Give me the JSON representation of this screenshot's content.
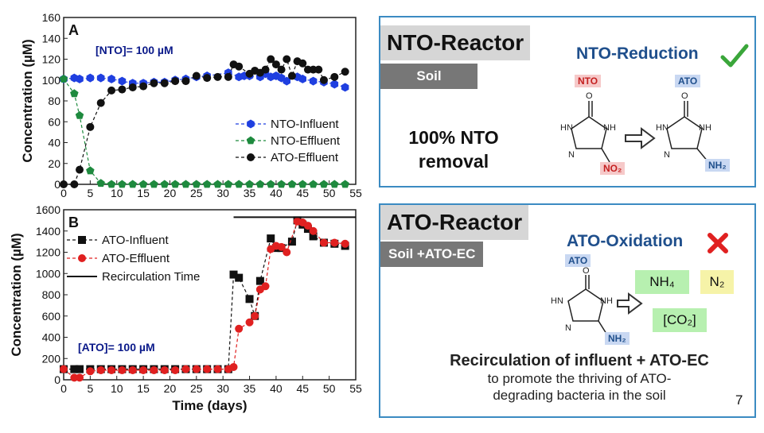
{
  "chart_data": [
    {
      "type": "line",
      "panel_letter": "A",
      "annotation": "[NTO]= 100 µM",
      "xlabel": "",
      "ylabel": "Concentration (µM)",
      "xlim": [
        0,
        55
      ],
      "ylim": [
        0,
        160
      ],
      "x_ticks": [
        "0",
        "5",
        "10",
        "15",
        "20",
        "25",
        "30",
        "35",
        "40",
        "45",
        "50",
        "55"
      ],
      "y_ticks": [
        "0",
        "20",
        "40",
        "60",
        "80",
        "100",
        "120",
        "140",
        "160"
      ],
      "legend_position": "right",
      "series": [
        {
          "name": "NTO-Influent",
          "color": "#1f3fe0",
          "marker": "hexagon",
          "x": [
            0,
            2,
            3,
            5,
            7,
            9,
            11,
            13,
            15,
            17,
            19,
            21,
            23,
            25,
            27,
            31,
            33,
            34,
            35,
            37,
            38,
            39,
            40,
            41,
            42,
            44,
            45,
            47,
            49,
            51,
            53
          ],
          "y": [
            101,
            102,
            101,
            102,
            102,
            101,
            99,
            97,
            97,
            98,
            98,
            100,
            101,
            103,
            104,
            107,
            103,
            104,
            104,
            103,
            106,
            103,
            104,
            102,
            99,
            103,
            101,
            99,
            98,
            96,
            93
          ]
        },
        {
          "name": "NTO-Effluent",
          "color": "#1e8a3e",
          "marker": "pentagon",
          "x": [
            0,
            2,
            3,
            5,
            7,
            9,
            11,
            13,
            15,
            17,
            19,
            21,
            23,
            25,
            27,
            29,
            31,
            33,
            35,
            37,
            39,
            41,
            43,
            45,
            47,
            49,
            51,
            53
          ],
          "y": [
            101,
            87,
            66,
            13,
            1,
            0,
            0,
            0,
            0,
            0,
            0,
            0,
            0,
            0,
            0,
            0,
            0,
            0,
            0,
            0,
            0,
            0,
            0,
            0,
            0,
            0,
            0,
            0
          ]
        },
        {
          "name": "ATO-Effluent",
          "color": "#111111",
          "marker": "circle",
          "x": [
            0,
            2,
            3,
            5,
            7,
            9,
            11,
            13,
            15,
            17,
            19,
            21,
            23,
            25,
            27,
            29,
            31,
            32,
            33,
            35,
            36,
            37,
            38,
            39,
            40,
            41,
            42,
            43,
            44,
            45,
            46,
            47,
            48,
            49,
            51,
            53
          ],
          "y": [
            0,
            0,
            14,
            55,
            78,
            90,
            91,
            93,
            94,
            97,
            97,
            99,
            99,
            104,
            102,
            103,
            103,
            115,
            113,
            106,
            109,
            107,
            110,
            120,
            115,
            110,
            120,
            104,
            118,
            116,
            110,
            110,
            110,
            100,
            103,
            108
          ]
        }
      ]
    },
    {
      "type": "line",
      "panel_letter": "B",
      "annotation": "[ATO]= 100 µM",
      "xlabel": "Time (days)",
      "ylabel": "Concentration (µM)",
      "xlim": [
        0,
        55
      ],
      "ylim": [
        0,
        1600
      ],
      "x_ticks": [
        "0",
        "5",
        "10",
        "15",
        "20",
        "25",
        "30",
        "35",
        "40",
        "45",
        "50",
        "55"
      ],
      "y_ticks": [
        "0",
        "200",
        "400",
        "600",
        "800",
        "1000",
        "1200",
        "1400",
        "1600"
      ],
      "legend_position": "upper-left",
      "series": [
        {
          "name": "ATO-Influent",
          "color": "#111111",
          "marker": "square",
          "x": [
            0,
            2,
            3,
            5,
            7,
            9,
            11,
            13,
            15,
            17,
            19,
            21,
            23,
            25,
            27,
            29,
            31,
            32,
            33,
            35,
            36,
            37,
            39,
            40,
            41,
            43,
            44,
            45,
            46,
            47,
            49,
            51,
            53
          ],
          "y": [
            100,
            100,
            100,
            100,
            100,
            100,
            100,
            100,
            100,
            100,
            100,
            100,
            100,
            100,
            100,
            100,
            100,
            990,
            960,
            760,
            600,
            930,
            1330,
            1240,
            1240,
            1300,
            1500,
            1460,
            1420,
            1350,
            1290,
            1280,
            1260
          ]
        },
        {
          "name": "ATO-Effluent",
          "color": "#e02020",
          "marker": "circle",
          "x": [
            0,
            2,
            3,
            5,
            7,
            9,
            11,
            13,
            15,
            17,
            19,
            21,
            23,
            25,
            27,
            29,
            31,
            32,
            33,
            35,
            36,
            37,
            38,
            39,
            40,
            41,
            42,
            44,
            45,
            46,
            47,
            49,
            51,
            53
          ],
          "y": [
            100,
            20,
            20,
            80,
            90,
            90,
            90,
            90,
            90,
            90,
            90,
            90,
            100,
            100,
            100,
            100,
            100,
            120,
            480,
            540,
            600,
            850,
            880,
            1230,
            1260,
            1250,
            1200,
            1490,
            1480,
            1450,
            1400,
            1290,
            1290,
            1280
          ]
        },
        {
          "name": "Recirculation Time",
          "color": "#111111",
          "marker": "none",
          "x": [
            32,
            55
          ],
          "y": [
            1530,
            1530
          ]
        }
      ]
    }
  ],
  "nto_panel": {
    "title": "NTO-Reactor",
    "tag": "Soil",
    "task": "NTO-Reduction",
    "check_icon": "check-icon",
    "result_line1": "100% NTO",
    "result_line2": "removal",
    "from_label": "NTO",
    "to_label": "ATO",
    "from_group": "NO₂",
    "to_group": "NH₂"
  },
  "ato_panel": {
    "title": "ATO-Reactor",
    "tag": "Soil +ATO-EC",
    "task": "ATO-Oxidation",
    "cross_icon": "cross-icon",
    "from_label": "ATO",
    "group": "NH₂",
    "products": [
      "NH₄",
      "N₂",
      "[CO₂]"
    ],
    "caption_bold": "Recirculation of influent + ATO-EC",
    "caption_lines": [
      "to promote the thriving of ATO-",
      "degrading bacteria in the soil"
    ]
  },
  "page_number": "7",
  "colors": {
    "panel_border": "#3b8bc2",
    "title_bg": "#d6d6d6",
    "tag_bg": "#777777",
    "product_green": "#b7f0b0",
    "product_yellow": "#f6f3a8"
  }
}
